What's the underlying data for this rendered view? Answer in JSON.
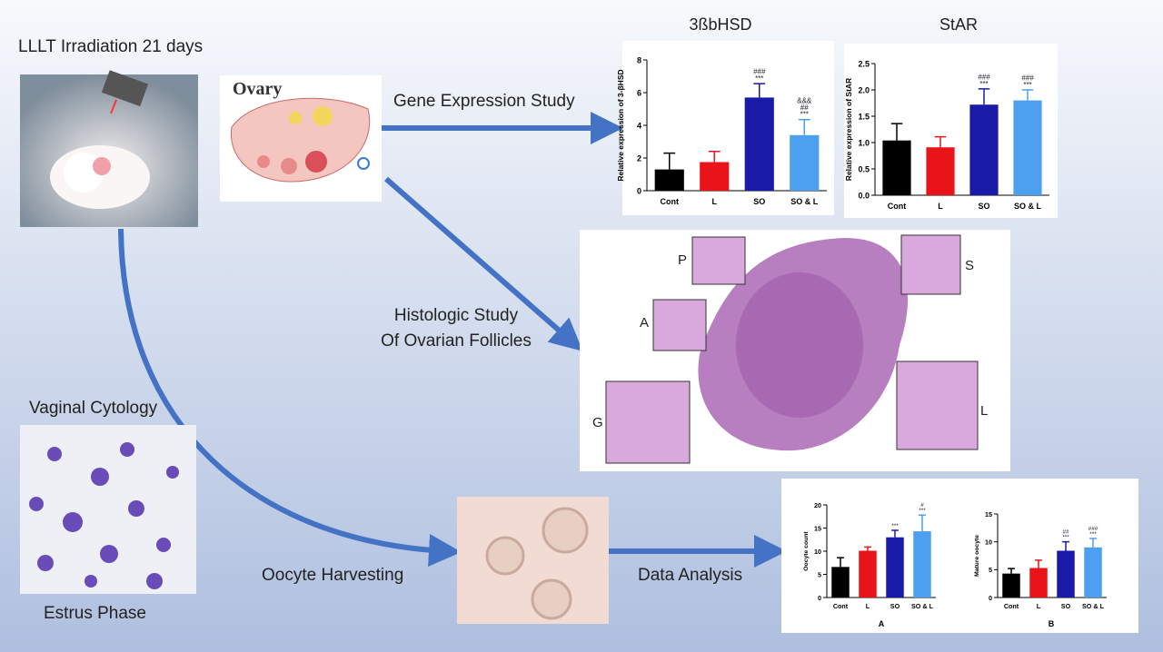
{
  "header": {
    "title": "LLLT Irradiation 21 days"
  },
  "steps": {
    "ovary_label": "Ovary",
    "gene": "Gene Expression Study",
    "histo_1": "Histologic Study",
    "histo_2": "Of Ovarian Follicles",
    "cytology": "Vaginal Cytology",
    "estrus": "Estrus Phase",
    "oocyte": "Oocyte Harvesting",
    "analysis": "Data Analysis"
  },
  "histology_labels": [
    "P",
    "S",
    "A",
    "G",
    "L"
  ],
  "charts": [
    {
      "type": "bar",
      "title": "3ßbHSD",
      "y_label": "Relative expression of 3-βHSD",
      "categories": [
        "Cont",
        "L",
        "SO",
        "SO & L"
      ],
      "values": [
        1.3,
        1.75,
        5.7,
        3.4
      ],
      "errors": [
        1.0,
        0.65,
        0.85,
        0.95
      ],
      "annotations": [
        [],
        [],
        [
          "###",
          "***"
        ],
        [
          "&&&",
          "##",
          "***"
        ]
      ],
      "colors": [
        "#000000",
        "#e8141a",
        "#1a1aa8",
        "#4da0f0"
      ],
      "ylim": [
        0,
        8
      ],
      "yticks": [
        0,
        2,
        4,
        6,
        8
      ]
    },
    {
      "type": "bar",
      "title": "StAR",
      "y_label": "Relative expression of StAR",
      "categories": [
        "Cont",
        "L",
        "SO",
        "SO & L"
      ],
      "values": [
        1.04,
        0.91,
        1.72,
        1.8
      ],
      "errors": [
        0.32,
        0.2,
        0.3,
        0.2
      ],
      "annotations": [
        [],
        [],
        [
          "###",
          "***"
        ],
        [
          "###",
          "***"
        ]
      ],
      "colors": [
        "#000000",
        "#e8141a",
        "#1a1aa8",
        "#4da0f0"
      ],
      "ylim": [
        0,
        2.5
      ],
      "yticks": [
        {
          "value": 0,
          "label": "0.0"
        },
        0.5,
        {
          "value": 1,
          "label": "1.0"
        },
        1.5,
        {
          "value": 2,
          "label": "2.0"
        },
        2.5
      ]
    },
    {
      "type": "bar",
      "subtitle": "A",
      "y_label": "Oocyte count",
      "categories": [
        "Cont",
        "L",
        "SO",
        "SO & L"
      ],
      "values": [
        6.6,
        10.1,
        13,
        14.3
      ],
      "errors": [
        2,
        0.8,
        1.5,
        3.5
      ],
      "annotations": [
        [],
        [],
        [
          "***"
        ],
        [
          "#",
          "***"
        ]
      ],
      "colors": [
        "#000000",
        "#e8141a",
        "#1a1aa8",
        "#4da0f0"
      ],
      "ylim": [
        0,
        20
      ],
      "yticks": [
        0,
        5,
        10,
        15,
        20
      ]
    },
    {
      "type": "bar",
      "subtitle": "B",
      "y_label": "Mature oocyte",
      "categories": [
        "Cont",
        "L",
        "SO",
        "SO & L"
      ],
      "values": [
        4.3,
        5.3,
        8.4,
        9
      ],
      "errors": [
        0.9,
        1.4,
        1.6,
        1.6
      ],
      "annotations": [
        [],
        [],
        [
          "##",
          "***"
        ],
        [
          "###",
          "***"
        ]
      ],
      "colors": [
        "#000000",
        "#e8141a",
        "#1a1aa8",
        "#4da0f0"
      ],
      "ylim": [
        0,
        15
      ],
      "yticks": [
        0,
        5,
        10,
        15
      ]
    }
  ]
}
